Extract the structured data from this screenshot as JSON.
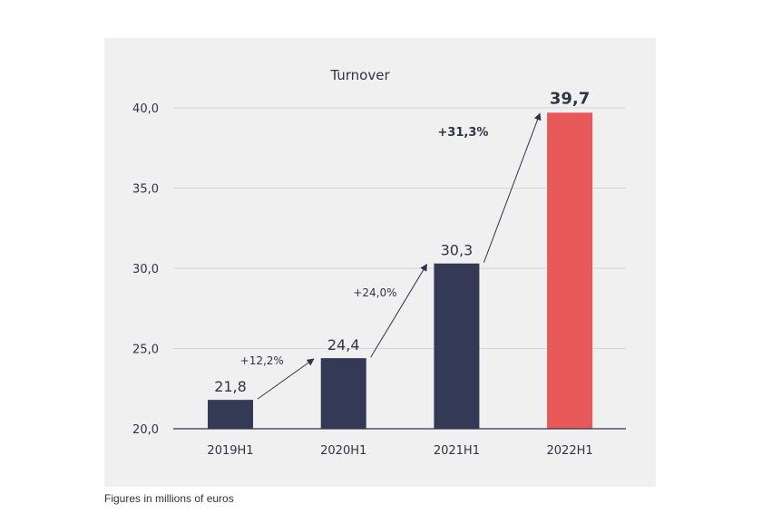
{
  "chart_data": {
    "type": "bar",
    "title": "Turnover",
    "categories": [
      "2019H1",
      "2020H1",
      "2021H1",
      "2022H1"
    ],
    "values": [
      21.8,
      24.4,
      30.3,
      39.7
    ],
    "value_labels": [
      "21,8",
      "24,4",
      "30,3",
      "39,7"
    ],
    "growth_labels": [
      "+12,2%",
      "+24,0%",
      "+31,3%"
    ],
    "ylim": [
      20,
      40
    ],
    "yticks": [
      20,
      25,
      30,
      35,
      40
    ],
    "ytick_labels": [
      "20,0",
      "25,0",
      "30,0",
      "35,0",
      "40,0"
    ],
    "xlabel": "",
    "ylabel": "",
    "grid": true,
    "colors": [
      "#343a55",
      "#343a55",
      "#343a55",
      "#e85a5a"
    ],
    "highlight_index": 3
  },
  "footnote": "Figures in millions of euros"
}
